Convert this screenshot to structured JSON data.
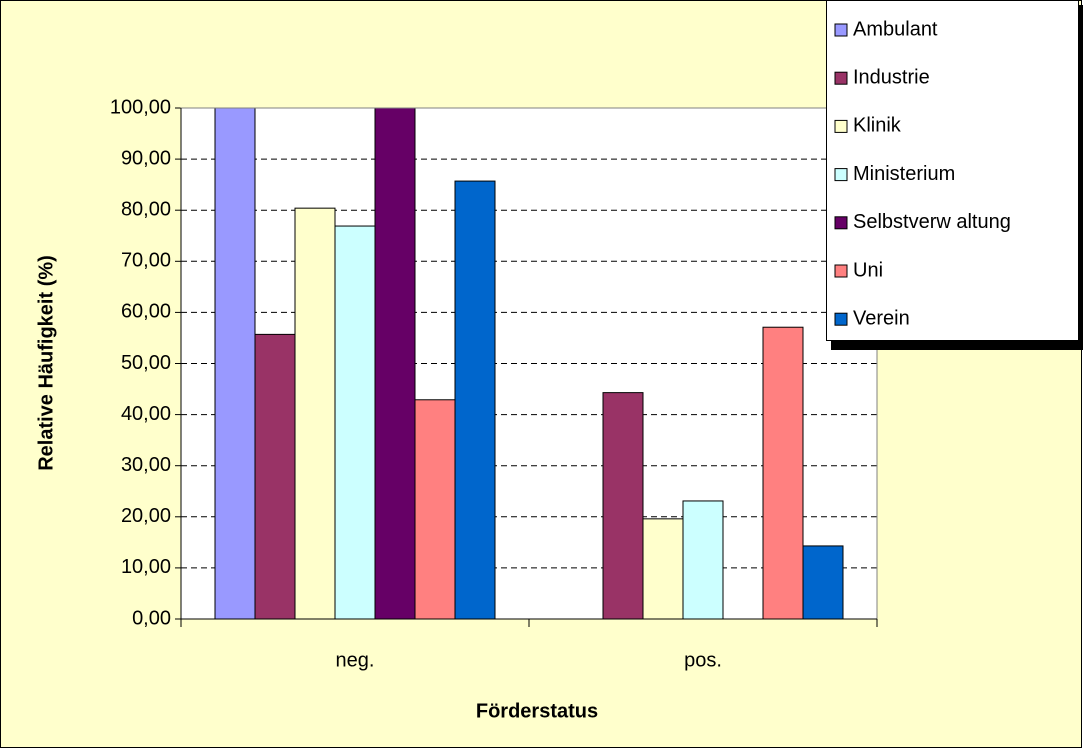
{
  "chart_data": {
    "type": "bar",
    "y_label": "Relative Häufigkeit (%)",
    "x_label": "Förderstatus",
    "categories": [
      "neg.",
      "pos."
    ],
    "series": [
      {
        "name": "Ambulant",
        "color": "#9999ff",
        "values": [
          100,
          0
        ]
      },
      {
        "name": "Industrie",
        "color": "#993366",
        "values": [
          55.7,
          44.3
        ]
      },
      {
        "name": "Klinik",
        "color": "#ffffcc",
        "values": [
          80.4,
          19.6
        ]
      },
      {
        "name": "Ministerium",
        "color": "#ccffff",
        "values": [
          76.9,
          23.1
        ]
      },
      {
        "name": "Selbstverw altung",
        "color": "#660066",
        "values": [
          100,
          0
        ]
      },
      {
        "name": "Uni",
        "color": "#ff8080",
        "values": [
          42.9,
          57.1
        ]
      },
      {
        "name": "Verein",
        "color": "#0066cc",
        "values": [
          85.7,
          14.3
        ]
      }
    ],
    "ylim": [
      0,
      100
    ],
    "yticks": [
      {
        "value": 0,
        "label": "0,00"
      },
      {
        "value": 10,
        "label": "10,00"
      },
      {
        "value": 20,
        "label": "20,00"
      },
      {
        "value": 30,
        "label": "30,00"
      },
      {
        "value": 40,
        "label": "40,00"
      },
      {
        "value": 50,
        "label": "50,00"
      },
      {
        "value": 60,
        "label": "60,00"
      },
      {
        "value": 70,
        "label": "70,00"
      },
      {
        "value": 80,
        "label": "80,00"
      },
      {
        "value": 90,
        "label": "90,00"
      },
      {
        "value": 100,
        "label": "100,00"
      }
    ],
    "grid": true,
    "legend": "top-right"
  }
}
